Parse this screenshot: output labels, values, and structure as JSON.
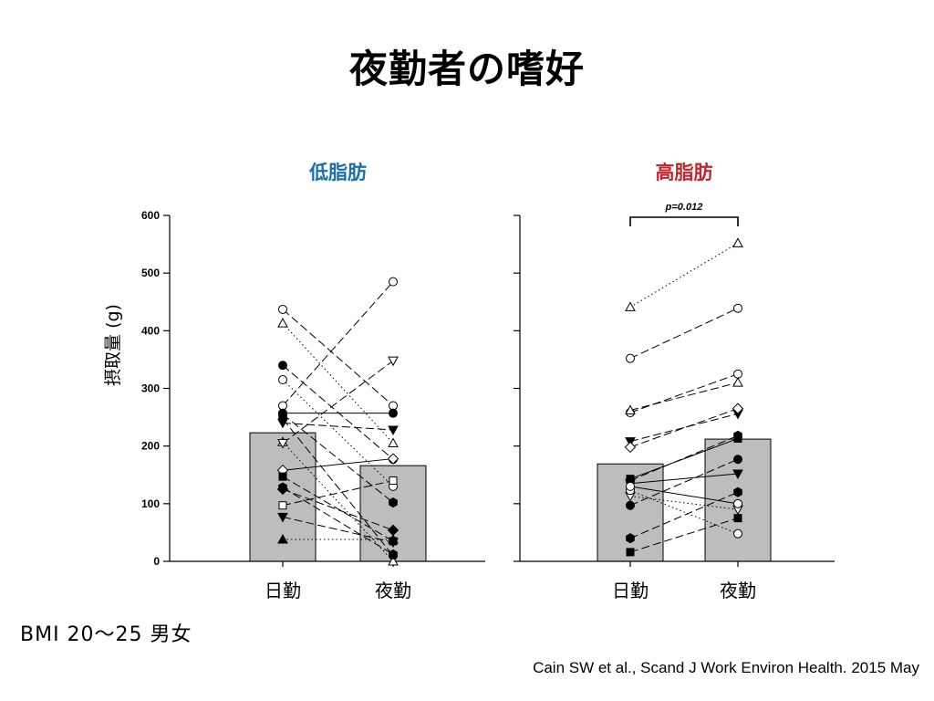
{
  "slide": {
    "title": "夜勤者の嗜好",
    "note": "BMI 20～25 男女",
    "citation": "Cain SW et al., Scand J Work Environ Health. 2015 May"
  },
  "chart_data": {
    "type": "bar",
    "ylabel": "摂取量 (g)",
    "ylim": [
      0,
      600
    ],
    "yticks": [
      0,
      100,
      200,
      300,
      400,
      500,
      600
    ],
    "categories": [
      "日勤",
      "夜勤"
    ],
    "panels": [
      {
        "title": "低脂肪",
        "title_color": "#1a6fa8",
        "means": [
          223,
          166
        ],
        "significance": null,
        "subjects": [
          {
            "symbol": "circle-open",
            "values": [
              437,
              270
            ],
            "line": "dash"
          },
          {
            "symbol": "triangle-open",
            "values": [
              413,
              205
            ],
            "line": "dot"
          },
          {
            "symbol": "circle-filled",
            "values": [
              340,
              177
            ],
            "line": "dash"
          },
          {
            "symbol": "circle-open",
            "values": [
              315,
              130
            ],
            "line": "dot"
          },
          {
            "symbol": "circle-open",
            "values": [
              270,
              485
            ],
            "line": "dash"
          },
          {
            "symbol": "circle-filled",
            "values": [
              257,
              257
            ],
            "line": "solid"
          },
          {
            "symbol": "circle-filled",
            "values": [
              247,
              10
            ],
            "line": "dash"
          },
          {
            "symbol": "triangle-down-filled",
            "values": [
              240,
              228
            ],
            "line": "dash"
          },
          {
            "symbol": "triangle-open",
            "values": [
              207,
              0
            ],
            "line": "dot"
          },
          {
            "symbol": "triangle-down-open",
            "values": [
              205,
              348
            ],
            "line": "dash"
          },
          {
            "symbol": "diamond-open",
            "values": [
              158,
              178
            ],
            "line": "solid"
          },
          {
            "symbol": "square-filled",
            "values": [
              147,
              35
            ],
            "line": "dash"
          },
          {
            "symbol": "hexagon-filled",
            "values": [
              128,
              12
            ],
            "line": "dash"
          },
          {
            "symbol": "diamond-filled",
            "values": [
              125,
              54
            ],
            "line": "dash"
          },
          {
            "symbol": "square-open",
            "values": [
              97,
              140
            ],
            "line": "dash"
          },
          {
            "symbol": "triangle-down-filled",
            "values": [
              77,
              33
            ],
            "line": "dash"
          },
          {
            "symbol": "triangle-filled",
            "values": [
              38,
              38
            ],
            "line": "dot"
          },
          {
            "symbol": "hexagon-filled",
            "values": [
              255,
              102
            ],
            "line": "dash"
          }
        ]
      },
      {
        "title": "高脂肪",
        "title_color": "#c0272d",
        "means": [
          169,
          212
        ],
        "significance": "p=0.012",
        "subjects": [
          {
            "symbol": "triangle-open",
            "values": [
              441,
              552
            ],
            "line": "dot"
          },
          {
            "symbol": "circle-open",
            "values": [
              352,
              439
            ],
            "line": "dash"
          },
          {
            "symbol": "circle-open",
            "values": [
              258,
              325
            ],
            "line": "dash"
          },
          {
            "symbol": "triangle-open",
            "values": [
              262,
              310
            ],
            "line": "dash"
          },
          {
            "symbol": "triangle-down-filled",
            "values": [
              208,
              256
            ],
            "line": "dash"
          },
          {
            "symbol": "diamond-open",
            "values": [
              198,
              265
            ],
            "line": "dash"
          },
          {
            "symbol": "hexagon-filled",
            "values": [
              140,
              218
            ],
            "line": "dash"
          },
          {
            "symbol": "square-filled",
            "values": [
              143,
              213
            ],
            "line": "solid"
          },
          {
            "symbol": "circle-filled",
            "values": [
              97,
              177
            ],
            "line": "dash"
          },
          {
            "symbol": "triangle-down-filled",
            "values": [
              135,
              152
            ],
            "line": "solid"
          },
          {
            "symbol": "triangle-down-open",
            "values": [
              113,
              90
            ],
            "line": "dot"
          },
          {
            "symbol": "circle-open",
            "values": [
              123,
              48
            ],
            "line": "dot"
          },
          {
            "symbol": "hexagon-filled",
            "values": [
              40,
              120
            ],
            "line": "dash"
          },
          {
            "symbol": "square-filled",
            "values": [
              16,
              75
            ],
            "line": "dash"
          },
          {
            "symbol": "circle-open",
            "values": [
              130,
              100
            ],
            "line": "solid"
          }
        ]
      }
    ]
  }
}
